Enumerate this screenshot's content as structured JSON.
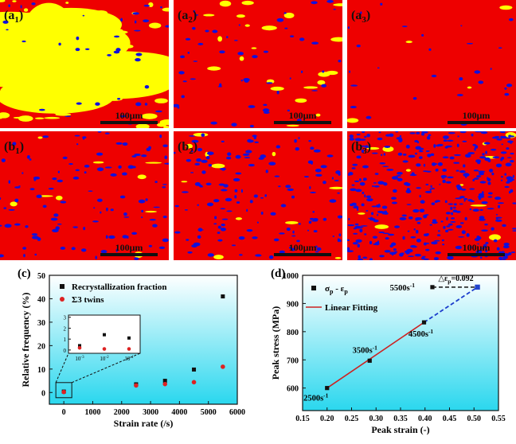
{
  "micrographs": {
    "panels": [
      {
        "label": "(a",
        "sub": "1",
        "scale": "100μm",
        "yellow": 0.4,
        "blue": 0.04
      },
      {
        "label": "(a",
        "sub": "2",
        "scale": "100μm",
        "yellow": 0.1,
        "blue": 0.06
      },
      {
        "label": "(a",
        "sub": "3",
        "scale": "100μm",
        "yellow": 0.02,
        "blue": 0.03
      },
      {
        "label": "(b",
        "sub": "1",
        "scale": "100μm",
        "yellow": 0.04,
        "blue": 0.12
      },
      {
        "label": "(b",
        "sub": "2",
        "scale": "100μm",
        "yellow": 0.05,
        "blue": 0.16
      },
      {
        "label": "(b",
        "sub": "3",
        "scale": "100μm",
        "yellow": 0.05,
        "blue": 0.45
      }
    ],
    "colors": {
      "matrix": "#ee0000",
      "recrystallized": "#ffff00",
      "twin": "#1010dd",
      "gradient_top": "#ffffff",
      "gradient_bottom": "#2ad7ee"
    }
  },
  "chart_data": [
    {
      "panel": "(c)",
      "type": "scatter",
      "xlabel": "Strain rate (/s)",
      "ylabel": "Relative frequency (%)",
      "xlim": [
        -500,
        6000
      ],
      "ylim": [
        -5,
        50
      ],
      "xticks": [
        "0",
        "1000",
        "2000",
        "3000",
        "4000",
        "5000",
        "6000"
      ],
      "yticks": [
        "0",
        "10",
        "20",
        "30",
        "40",
        "50"
      ],
      "legend_position": "top-left",
      "series": [
        {
          "name": "Recrystallization fraction",
          "marker": "square",
          "color": "#111111",
          "x": [
            0.001,
            2500,
            3500,
            4500,
            5500
          ],
          "y": [
            0.4,
            3.5,
            5.0,
            9.8,
            41.0
          ]
        },
        {
          "name": "Σ3 twins",
          "marker": "circle",
          "color": "#dd2222",
          "x": [
            0.001,
            2500,
            3500,
            4500,
            5500
          ],
          "y": [
            0.2,
            3.0,
            3.6,
            4.4,
            11.0
          ]
        }
      ],
      "inset": {
        "xticks": [
          "10",
          "10",
          "10"
        ],
        "xtick_exp": [
          "-3",
          "-2",
          "-1"
        ],
        "yticks": [
          "0",
          "1",
          "2",
          "3"
        ],
        "ylim": [
          -0.3,
          3.2
        ],
        "recrystallization": [
          0.4,
          1.4,
          1.1
        ],
        "twins": [
          0.2,
          0.1,
          0.1
        ]
      }
    },
    {
      "panel": "(d)",
      "type": "line",
      "xlabel": "Peak strain (-)",
      "ylabel": "Peak stress (MPa)",
      "xlim": [
        0.15,
        0.55
      ],
      "ylim": [
        520,
        1000
      ],
      "xticks": [
        "0.15",
        "0.20",
        "0.25",
        "0.30",
        "0.35",
        "0.40",
        "0.45",
        "0.50",
        "0.55"
      ],
      "yticks": [
        "600",
        "700",
        "800",
        "900",
        "1000"
      ],
      "legend_position": "top-left",
      "legend_marker_label": "σ",
      "legend_marker_sub1": "p",
      "legend_marker_sep": " - ε",
      "legend_marker_sub2": "p",
      "legend_fit_label": "Linear Fitting",
      "points": [
        {
          "x": 0.2,
          "y": 600,
          "label": "2500s",
          "sup": "-1"
        },
        {
          "x": 0.287,
          "y": 697,
          "label": "3500s",
          "sup": "-1"
        },
        {
          "x": 0.398,
          "y": 833,
          "label": "4500s",
          "sup": "-1"
        },
        {
          "x": 0.415,
          "y": 958,
          "label": "5500s",
          "sup": "-1"
        }
      ],
      "extra_point": {
        "x": 0.507,
        "y": 958,
        "color": "#2244cc"
      },
      "fit": {
        "x": [
          0.2,
          0.398
        ],
        "y": [
          600,
          833
        ],
        "color": "#cc2222"
      },
      "extrapolation": {
        "x": [
          0.398,
          0.507
        ],
        "y": [
          833,
          958
        ],
        "color": "#1a3ccc"
      },
      "delta_label": "△ε",
      "delta_sub": "p",
      "delta_value": "=0.092"
    }
  ]
}
